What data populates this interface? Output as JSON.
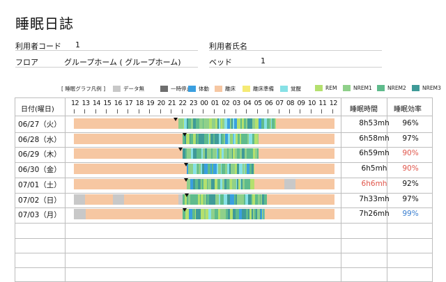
{
  "title": "睡眠日誌",
  "info": {
    "user_code_label": "利用者コード",
    "user_code_value": "1",
    "user_name_label": "利用者氏名",
    "user_name_value": "",
    "floor_label": "フロア",
    "floor_value": "グループホーム ( グループホーム)",
    "bed_label": "ベッド",
    "bed_value": "1"
  },
  "legend": {
    "prefix": "[ 睡眠グラフ凡例 ]",
    "items": [
      {
        "label": "データ無",
        "color": "#c8c8c8"
      },
      {
        "label": "一時停止",
        "color": "#6e6e6e"
      },
      {
        "label": "体動",
        "color": "#3a9fe0"
      },
      {
        "label": "離床",
        "color": "#f6c7a2"
      },
      {
        "label": "離床準備",
        "color": "#f5ea74"
      },
      {
        "label": "覚醒",
        "color": "#87e1e6"
      },
      {
        "label": "REM",
        "color": "#b4e06e"
      },
      {
        "label": "NREM1",
        "color": "#8fd08a"
      },
      {
        "label": "NREM2",
        "color": "#5fbb8c"
      },
      {
        "label": "NREM3",
        "color": "#3f9a98"
      }
    ]
  },
  "table": {
    "date_header": "日付(曜日)",
    "sleep_header": "睡眠時間",
    "eff_header": "睡眠効率",
    "hours": [
      "12",
      "13",
      "14",
      "15",
      "16",
      "17",
      "18",
      "19",
      "20",
      "21",
      "22",
      "23",
      "00",
      "01",
      "02",
      "03",
      "04",
      "05",
      "06",
      "07",
      "08",
      "09",
      "10",
      "11",
      "12"
    ]
  },
  "rows": [
    {
      "date": "06/27（火）",
      "sleep_time": "8h53mh",
      "sleep_time_color": "#111111",
      "efficiency": "96%",
      "efficiency_color": "#111111"
    },
    {
      "date": "06/28（水）",
      "sleep_time": "6h58mh",
      "sleep_time_color": "#111111",
      "efficiency": "97%",
      "efficiency_color": "#111111"
    },
    {
      "date": "06/29（木）",
      "sleep_time": "6h59mh",
      "sleep_time_color": "#111111",
      "efficiency": "90%",
      "efficiency_color": "#e0554a"
    },
    {
      "date": "06/30（金）",
      "sleep_time": "6h5mh",
      "sleep_time_color": "#111111",
      "efficiency": "90%",
      "efficiency_color": "#e0554a"
    },
    {
      "date": "07/01（土）",
      "sleep_time": "6h6mh",
      "sleep_time_color": "#e0554a",
      "efficiency": "92%",
      "efficiency_color": "#111111"
    },
    {
      "date": "07/02（日）",
      "sleep_time": "7h33mh",
      "sleep_time_color": "#111111",
      "efficiency": "97%",
      "efficiency_color": "#111111"
    },
    {
      "date": "07/03（月）",
      "sleep_time": "7h26mh",
      "sleep_time_color": "#111111",
      "efficiency": "99%",
      "efficiency_color": "#3a7fd0"
    }
  ],
  "timeline": [
    {
      "marker_hour": 21.4,
      "segments": [
        {
          "from": 12,
          "to": 21.6,
          "state": "離床"
        },
        {
          "from": 21.6,
          "to": 30.6,
          "state": "sleep"
        },
        {
          "from": 30.6,
          "to": 36,
          "state": "離床"
        }
      ]
    },
    {
      "marker_hour": 22.2,
      "segments": [
        {
          "from": 12,
          "to": 22.0,
          "state": "離床"
        },
        {
          "from": 22.0,
          "to": 29.0,
          "state": "sleep"
        },
        {
          "from": 29.0,
          "to": 36,
          "state": "離床"
        }
      ]
    },
    {
      "marker_hour": 21.8,
      "segments": [
        {
          "from": 12,
          "to": 22.0,
          "state": "離床"
        },
        {
          "from": 22.0,
          "to": 29.0,
          "state": "sleep"
        },
        {
          "from": 29.0,
          "to": 36,
          "state": "離床"
        }
      ]
    },
    {
      "marker_hour": 22.3,
      "segments": [
        {
          "from": 12,
          "to": 22.4,
          "state": "離床"
        },
        {
          "from": 22.4,
          "to": 28.6,
          "state": "sleep"
        },
        {
          "from": 28.6,
          "to": 36,
          "state": "離床"
        }
      ]
    },
    {
      "marker_hour": 22.3,
      "segments": [
        {
          "from": 12,
          "to": 22.4,
          "state": "離床"
        },
        {
          "from": 22.4,
          "to": 28.6,
          "state": "sleep"
        },
        {
          "from": 28.6,
          "to": 31.4,
          "state": "離床"
        },
        {
          "from": 31.4,
          "to": 32.4,
          "state": "データ無"
        },
        {
          "from": 32.4,
          "to": 36,
          "state": "離床"
        }
      ]
    },
    {
      "marker_hour": 22.4,
      "segments": [
        {
          "from": 12,
          "to": 13.0,
          "state": "データ無"
        },
        {
          "from": 13.0,
          "to": 15.6,
          "state": "離床"
        },
        {
          "from": 15.6,
          "to": 16.6,
          "state": "データ無"
        },
        {
          "from": 16.6,
          "to": 21.6,
          "state": "離床"
        },
        {
          "from": 21.6,
          "to": 22.0,
          "state": "データ無"
        },
        {
          "from": 22.0,
          "to": 29.8,
          "state": "sleep"
        },
        {
          "from": 29.8,
          "to": 36,
          "state": "離床"
        }
      ]
    },
    {
      "marker_hour": 22.2,
      "segments": [
        {
          "from": 12,
          "to": 13.1,
          "state": "データ無"
        },
        {
          "from": 13.1,
          "to": 22.0,
          "state": "離床"
        },
        {
          "from": 22.0,
          "to": 29.6,
          "state": "sleep"
        },
        {
          "from": 29.6,
          "to": 36,
          "state": "離床"
        }
      ]
    }
  ]
}
